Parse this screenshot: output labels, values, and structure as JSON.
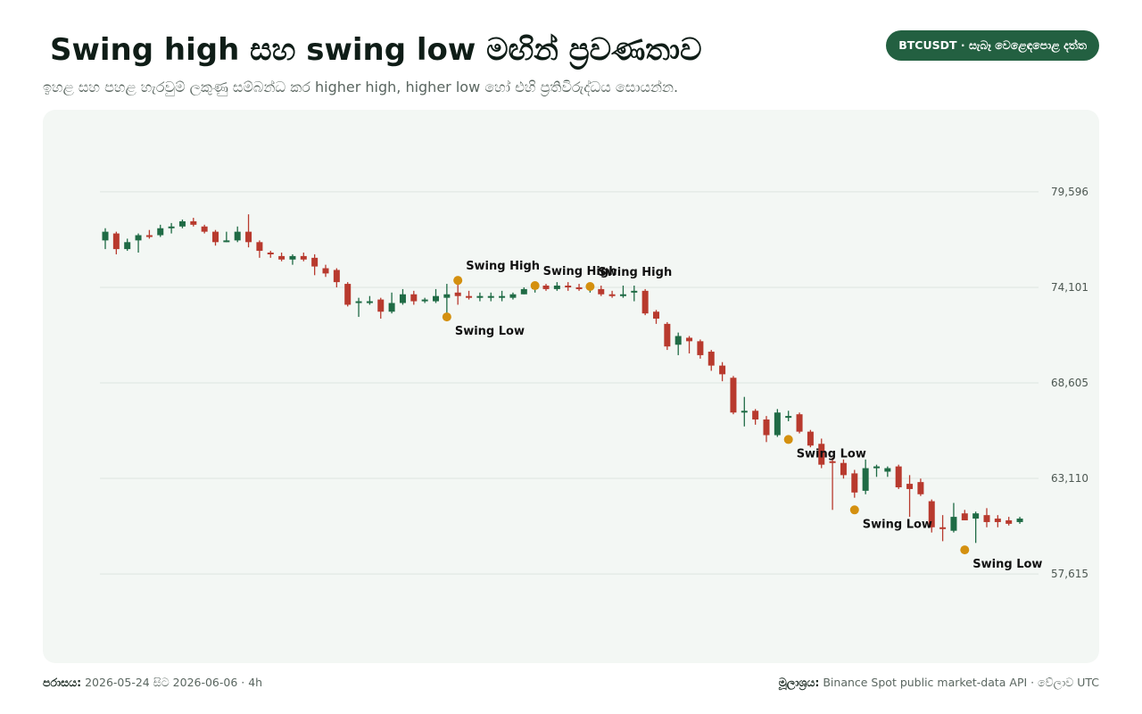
{
  "header": {
    "title": "Swing high සහ swing low මඟින් ප්‍රවණතාව",
    "subtitle": "ඉහළ සහ පහළ හැරවුම් ලකුණු සම්බන්ධ කර higher high, higher low හෝ එහි ප්‍රතිවිරුද්ධය සොයන්න.",
    "badge": "BTCUSDT · සැබෑ වෙළෙඳපොළ දත්ත"
  },
  "footer": {
    "range_key": "පරාසය:",
    "range_value": "2026-05-24 සිට 2026-06-06 · 4h",
    "source_key": "මූලාශ්‍රය:",
    "source_value": "Binance Spot public market-data API · වේලාව UTC"
  },
  "colors": {
    "up": "#1f6b45",
    "down": "#b83a2e",
    "swing_marker": "#d4900f",
    "grid": "#dde5e0",
    "tick_text": "#4d5852",
    "annotation_text": "#111111"
  },
  "chart_data": {
    "type": "candlestick",
    "symbol": "BTCUSDT",
    "interval": "4h",
    "ylim": [
      53000,
      83800
    ],
    "yticks": [
      57615,
      63110,
      68605,
      74101,
      79596
    ],
    "ytick_labels": [
      "57,615",
      "63,110",
      "68,605",
      "74,101",
      "79,596"
    ],
    "grid": true,
    "candles": [
      {
        "o": 76800,
        "h": 77500,
        "l": 76300,
        "c": 77300
      },
      {
        "o": 77200,
        "h": 77300,
        "l": 76000,
        "c": 76300
      },
      {
        "o": 76300,
        "h": 76900,
        "l": 76200,
        "c": 76700
      },
      {
        "o": 76800,
        "h": 77200,
        "l": 76100,
        "c": 77100
      },
      {
        "o": 77100,
        "h": 77400,
        "l": 76900,
        "c": 77000
      },
      {
        "o": 77100,
        "h": 77700,
        "l": 77000,
        "c": 77500
      },
      {
        "o": 77500,
        "h": 77800,
        "l": 77200,
        "c": 77600
      },
      {
        "o": 77600,
        "h": 78000,
        "l": 77500,
        "c": 77900
      },
      {
        "o": 77900,
        "h": 78100,
        "l": 77600,
        "c": 77700
      },
      {
        "o": 77600,
        "h": 77700,
        "l": 77200,
        "c": 77300
      },
      {
        "o": 77300,
        "h": 77400,
        "l": 76500,
        "c": 76700
      },
      {
        "o": 76800,
        "h": 77300,
        "l": 76700,
        "c": 76800
      },
      {
        "o": 76800,
        "h": 77600,
        "l": 76700,
        "c": 77300
      },
      {
        "o": 77300,
        "h": 78300,
        "l": 76400,
        "c": 76700
      },
      {
        "o": 76700,
        "h": 76800,
        "l": 75800,
        "c": 76200
      },
      {
        "o": 76100,
        "h": 76200,
        "l": 75800,
        "c": 76000
      },
      {
        "o": 75900,
        "h": 76100,
        "l": 75600,
        "c": 75700
      },
      {
        "o": 75700,
        "h": 76000,
        "l": 75400,
        "c": 75900
      },
      {
        "o": 75900,
        "h": 76100,
        "l": 75600,
        "c": 75700
      },
      {
        "o": 75800,
        "h": 76000,
        "l": 74800,
        "c": 75300
      },
      {
        "o": 75200,
        "h": 75400,
        "l": 74700,
        "c": 74900
      },
      {
        "o": 75100,
        "h": 75200,
        "l": 74100,
        "c": 74400
      },
      {
        "o": 74300,
        "h": 74400,
        "l": 73000,
        "c": 73100
      },
      {
        "o": 73200,
        "h": 73500,
        "l": 72400,
        "c": 73300
      },
      {
        "o": 73200,
        "h": 73600,
        "l": 73100,
        "c": 73300
      },
      {
        "o": 73400,
        "h": 73500,
        "l": 72300,
        "c": 72700
      },
      {
        "o": 72700,
        "h": 73800,
        "l": 72600,
        "c": 73200
      },
      {
        "o": 73200,
        "h": 74000,
        "l": 73100,
        "c": 73700
      },
      {
        "o": 73700,
        "h": 73900,
        "l": 73100,
        "c": 73300
      },
      {
        "o": 73300,
        "h": 73500,
        "l": 73200,
        "c": 73400
      },
      {
        "o": 73300,
        "h": 74000,
        "l": 73200,
        "c": 73600
      },
      {
        "o": 73500,
        "h": 74300,
        "l": 72300,
        "c": 73700
      },
      {
        "o": 73800,
        "h": 74600,
        "l": 73100,
        "c": 73600
      },
      {
        "o": 73600,
        "h": 73900,
        "l": 73400,
        "c": 73500
      },
      {
        "o": 73500,
        "h": 73800,
        "l": 73300,
        "c": 73600
      },
      {
        "o": 73500,
        "h": 73800,
        "l": 73300,
        "c": 73600
      },
      {
        "o": 73500,
        "h": 73900,
        "l": 73300,
        "c": 73600
      },
      {
        "o": 73500,
        "h": 73800,
        "l": 73400,
        "c": 73700
      },
      {
        "o": 73700,
        "h": 74100,
        "l": 73700,
        "c": 74000
      },
      {
        "o": 74000,
        "h": 74200,
        "l": 73800,
        "c": 74100
      },
      {
        "o": 74200,
        "h": 74300,
        "l": 73900,
        "c": 74000
      },
      {
        "o": 74000,
        "h": 74400,
        "l": 73900,
        "c": 74200
      },
      {
        "o": 74200,
        "h": 74400,
        "l": 73900,
        "c": 74100
      },
      {
        "o": 74100,
        "h": 74300,
        "l": 73900,
        "c": 74000
      },
      {
        "o": 74000,
        "h": 74200,
        "l": 73800,
        "c": 74100
      },
      {
        "o": 74000,
        "h": 74200,
        "l": 73600,
        "c": 73700
      },
      {
        "o": 73700,
        "h": 73900,
        "l": 73500,
        "c": 73600
      },
      {
        "o": 73600,
        "h": 74200,
        "l": 73500,
        "c": 73700
      },
      {
        "o": 73800,
        "h": 74200,
        "l": 73300,
        "c": 73900
      },
      {
        "o": 73900,
        "h": 74000,
        "l": 72500,
        "c": 72600
      },
      {
        "o": 72700,
        "h": 72800,
        "l": 72000,
        "c": 72300
      },
      {
        "o": 72000,
        "h": 72100,
        "l": 70500,
        "c": 70700
      },
      {
        "o": 70800,
        "h": 71500,
        "l": 70200,
        "c": 71300
      },
      {
        "o": 71200,
        "h": 71300,
        "l": 70300,
        "c": 71000
      },
      {
        "o": 71000,
        "h": 71100,
        "l": 70000,
        "c": 70200
      },
      {
        "o": 70400,
        "h": 70500,
        "l": 69300,
        "c": 69600
      },
      {
        "o": 69600,
        "h": 69800,
        "l": 68700,
        "c": 69100
      },
      {
        "o": 68900,
        "h": 69000,
        "l": 66800,
        "c": 66900
      },
      {
        "o": 67000,
        "h": 67800,
        "l": 66100,
        "c": 67000
      },
      {
        "o": 67000,
        "h": 67100,
        "l": 66200,
        "c": 66500
      },
      {
        "o": 66500,
        "h": 66700,
        "l": 65200,
        "c": 65600
      },
      {
        "o": 65600,
        "h": 67100,
        "l": 65500,
        "c": 66900
      },
      {
        "o": 66700,
        "h": 67000,
        "l": 66400,
        "c": 66700
      },
      {
        "o": 66800,
        "h": 66900,
        "l": 65700,
        "c": 65800
      },
      {
        "o": 65800,
        "h": 65900,
        "l": 64900,
        "c": 65000
      },
      {
        "o": 65100,
        "h": 65400,
        "l": 63700,
        "c": 63900
      },
      {
        "o": 64100,
        "h": 64300,
        "l": 61300,
        "c": 64000
      },
      {
        "o": 64000,
        "h": 64200,
        "l": 63100,
        "c": 63300
      },
      {
        "o": 63400,
        "h": 63600,
        "l": 62000,
        "c": 62300
      },
      {
        "o": 62400,
        "h": 64200,
        "l": 62200,
        "c": 63700
      },
      {
        "o": 63700,
        "h": 63900,
        "l": 63200,
        "c": 63800
      },
      {
        "o": 63500,
        "h": 63800,
        "l": 63200,
        "c": 63700
      },
      {
        "o": 63800,
        "h": 63900,
        "l": 62500,
        "c": 62600
      },
      {
        "o": 62800,
        "h": 63300,
        "l": 60900,
        "c": 62500
      },
      {
        "o": 62900,
        "h": 63100,
        "l": 62100,
        "c": 62200
      },
      {
        "o": 61800,
        "h": 61900,
        "l": 60000,
        "c": 60300
      },
      {
        "o": 60300,
        "h": 61000,
        "l": 59500,
        "c": 60200
      },
      {
        "o": 60100,
        "h": 61700,
        "l": 60000,
        "c": 60900
      },
      {
        "o": 61100,
        "h": 61300,
        "l": 60700,
        "c": 60700
      },
      {
        "o": 60800,
        "h": 61200,
        "l": 59400,
        "c": 61100
      },
      {
        "o": 61000,
        "h": 61400,
        "l": 60300,
        "c": 60600
      },
      {
        "o": 60800,
        "h": 61000,
        "l": 60300,
        "c": 60600
      },
      {
        "o": 60700,
        "h": 60900,
        "l": 60400,
        "c": 60500
      },
      {
        "o": 60600,
        "h": 60900,
        "l": 60500,
        "c": 60800
      }
    ],
    "swing_points": [
      {
        "index": 31,
        "price": 72400,
        "type": "low",
        "label": "Swing Low"
      },
      {
        "index": 32,
        "price": 74500,
        "type": "high",
        "label": "Swing High"
      },
      {
        "index": 39,
        "price": 74200,
        "type": "high",
        "label": "Swing High"
      },
      {
        "index": 44,
        "price": 74150,
        "type": "high",
        "label": "Swing High"
      },
      {
        "index": 62,
        "price": 65350,
        "type": "low",
        "label": "Swing Low"
      },
      {
        "index": 68,
        "price": 61300,
        "type": "low",
        "label": "Swing Low"
      },
      {
        "index": 78,
        "price": 59000,
        "type": "low",
        "label": "Swing Low"
      }
    ]
  }
}
